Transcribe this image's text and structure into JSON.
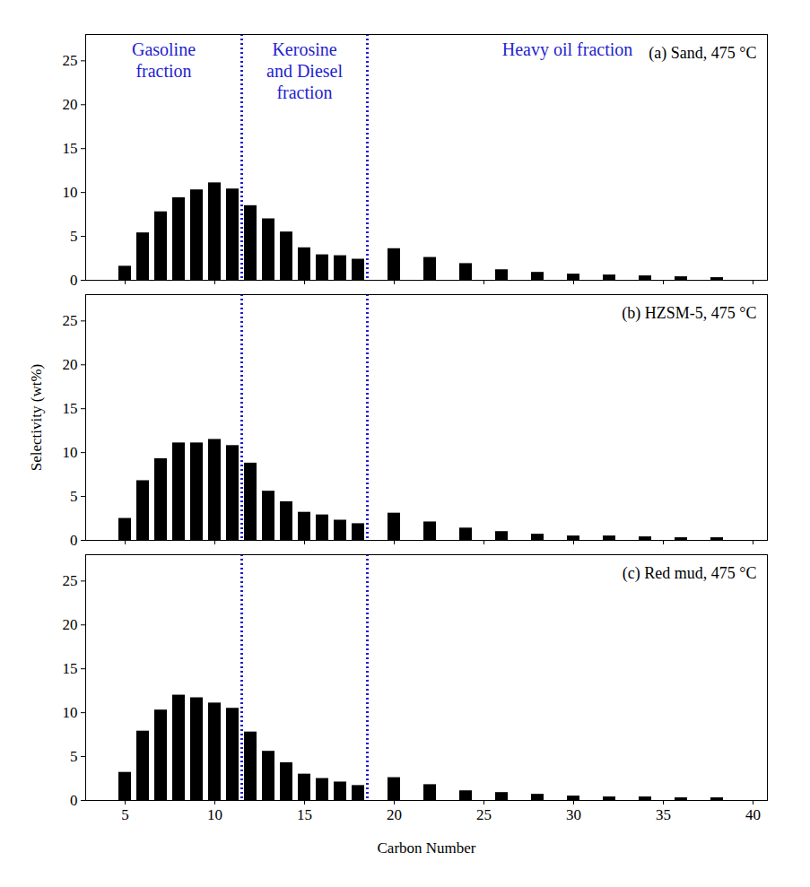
{
  "chart_data": [
    {
      "type": "bar",
      "title": "(a) Sand, 475 °C",
      "x": [
        5,
        6,
        7,
        8,
        9,
        10,
        11,
        12,
        13,
        14,
        15,
        16,
        17,
        18,
        20,
        22,
        24,
        26,
        28,
        30,
        32,
        34,
        36,
        38
      ],
      "values": [
        1.6,
        5.4,
        7.8,
        9.4,
        10.3,
        11.1,
        10.4,
        8.5,
        7.0,
        5.5,
        3.7,
        2.9,
        2.8,
        2.4,
        3.6,
        2.6,
        1.9,
        1.2,
        0.9,
        0.7,
        0.6,
        0.5,
        0.4,
        0.3
      ],
      "color": "#000000",
      "xlim": [
        2.8,
        40.8
      ],
      "ylim": [
        0,
        28
      ],
      "xticks": [
        5,
        10,
        15,
        20,
        25,
        30,
        35,
        40
      ],
      "yticks": [
        0,
        5,
        10,
        15,
        20,
        25
      ],
      "tick_labels": "y",
      "dividers": [
        11.5,
        18.5
      ],
      "annotations": [
        "Gasoline fraction",
        "Kerosine and Diesel fraction",
        "Heavy oil fraction"
      ]
    },
    {
      "type": "bar",
      "title": "(b) HZSM-5, 475 °C",
      "x": [
        5,
        6,
        7,
        8,
        9,
        10,
        11,
        12,
        13,
        14,
        15,
        16,
        17,
        18,
        20,
        22,
        24,
        26,
        28,
        30,
        32,
        34,
        36,
        38
      ],
      "values": [
        2.5,
        6.8,
        9.3,
        11.1,
        11.1,
        11.5,
        10.8,
        8.8,
        5.6,
        4.4,
        3.2,
        2.9,
        2.3,
        1.9,
        3.1,
        2.1,
        1.4,
        1.0,
        0.7,
        0.5,
        0.5,
        0.4,
        0.3,
        0.3
      ],
      "color": "#000000",
      "xlim": [
        2.8,
        40.8
      ],
      "ylim": [
        0,
        28
      ],
      "xticks": [
        5,
        10,
        15,
        20,
        25,
        30,
        35,
        40
      ],
      "yticks": [
        0,
        5,
        10,
        15,
        20,
        25
      ],
      "tick_labels": "y",
      "y_label": "Selectivity (wt%)",
      "dividers": [
        11.5,
        18.5
      ]
    },
    {
      "type": "bar",
      "title": "(c) Red mud, 475 °C",
      "x": [
        5,
        6,
        7,
        8,
        9,
        10,
        11,
        12,
        13,
        14,
        15,
        16,
        17,
        18,
        20,
        22,
        24,
        26,
        28,
        30,
        32,
        34,
        36,
        38
      ],
      "values": [
        3.2,
        7.9,
        10.3,
        12.0,
        11.7,
        11.1,
        10.5,
        7.8,
        5.6,
        4.3,
        3.0,
        2.5,
        2.1,
        1.7,
        2.6,
        1.8,
        1.1,
        0.9,
        0.7,
        0.5,
        0.4,
        0.4,
        0.3,
        0.3
      ],
      "color": "#000000",
      "xlim": [
        2.8,
        40.8
      ],
      "ylim": [
        0,
        28
      ],
      "xticks": [
        5,
        10,
        15,
        20,
        25,
        30,
        35,
        40
      ],
      "yticks": [
        0,
        5,
        10,
        15,
        20,
        25
      ],
      "x_label": "Carbon Number",
      "dividers": [
        11.5,
        18.5
      ]
    }
  ]
}
